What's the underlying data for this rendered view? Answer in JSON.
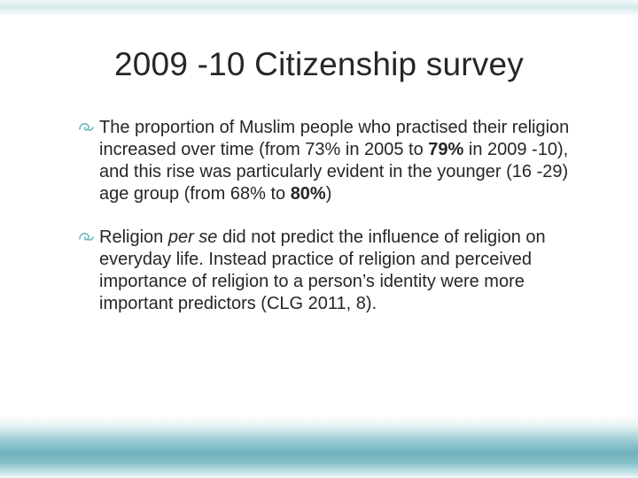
{
  "slide": {
    "title": "2009 -10 Citizenship survey",
    "bullets": [
      {
        "segments": [
          {
            "text": "The proportion of Muslim people who practised their religion increased over time (from 73% in 2005 to ",
            "style": ""
          },
          {
            "text": "79%",
            "style": "bold"
          },
          {
            "text": " in 2009 -10), and this rise was particularly evident in the younger (16 -29) age group (from 68% to ",
            "style": ""
          },
          {
            "text": "80%",
            "style": "bold"
          },
          {
            "text": ")",
            "style": ""
          }
        ]
      },
      {
        "segments": [
          {
            "text": "Religion ",
            "style": ""
          },
          {
            "text": "per se",
            "style": "italic"
          },
          {
            "text": " did not predict the influence of religion on everyday life. Instead practice of religion and perceived importance of religion to a person’s identity were more important predictors (CLG 2011, 8).",
            "style": ""
          }
        ]
      }
    ]
  },
  "style": {
    "bullet_color": "#6fb6bf",
    "title_color": "#262626",
    "body_color": "#262626",
    "title_fontsize": 37,
    "body_fontsize": 20,
    "background_color": "#ffffff"
  }
}
